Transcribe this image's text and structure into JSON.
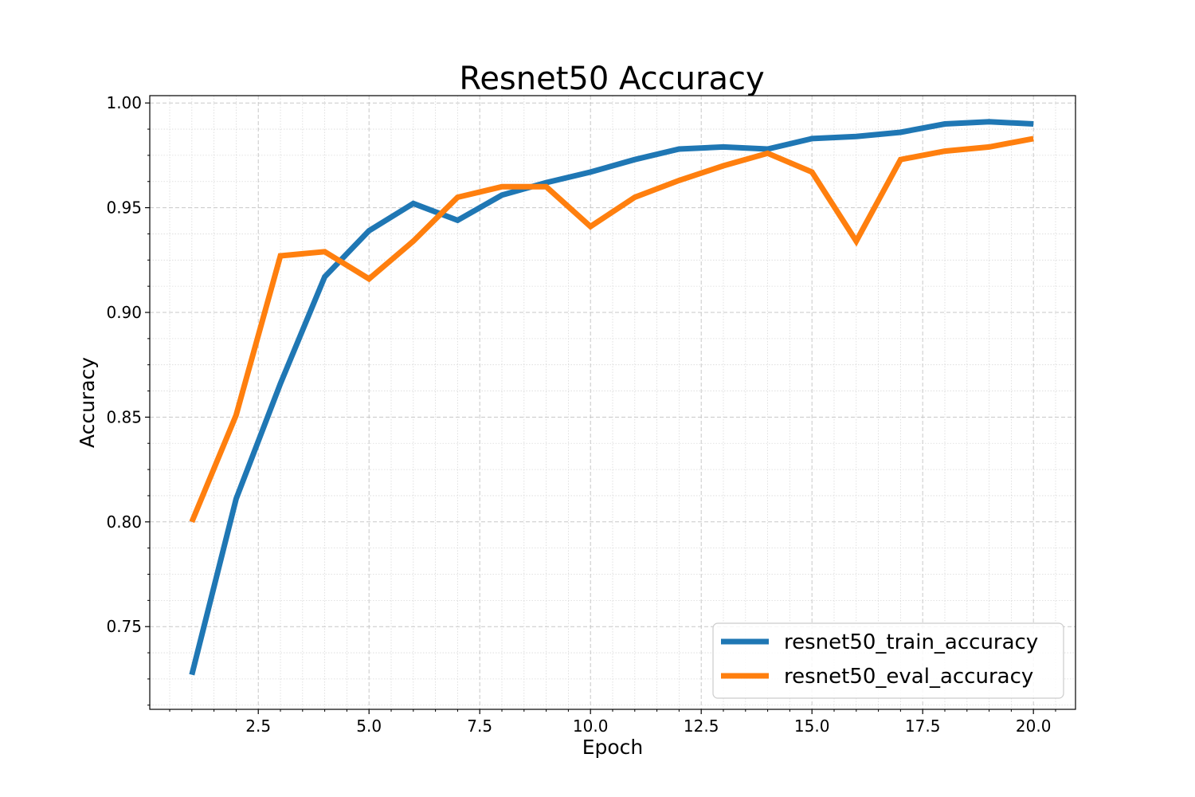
{
  "chart_data": {
    "type": "line",
    "title": "Resnet50 Accuracy",
    "xlabel": "Epoch",
    "ylabel": "Accuracy",
    "xlim": [
      0.05,
      20.95
    ],
    "ylim": [
      0.7105,
      1.0035
    ],
    "x_ticks": [
      2.5,
      5.0,
      7.5,
      10.0,
      12.5,
      15.0,
      17.5,
      20.0
    ],
    "x_tick_labels": [
      "2.5",
      "5.0",
      "7.5",
      "10.0",
      "12.5",
      "15.0",
      "17.5",
      "20.0"
    ],
    "x_minor_step": 0.5,
    "y_ticks": [
      0.75,
      0.8,
      0.85,
      0.9,
      0.95,
      1.0
    ],
    "y_tick_labels": [
      "0.75",
      "0.80",
      "0.85",
      "0.90",
      "0.95",
      "1.00"
    ],
    "y_minor_step": 0.0125,
    "grid": true,
    "legend_position": "lower-right",
    "x": [
      1,
      2,
      3,
      4,
      5,
      6,
      7,
      8,
      9,
      10,
      11,
      12,
      13,
      14,
      15,
      16,
      17,
      18,
      19,
      20
    ],
    "series": [
      {
        "name": "resnet50_train_accuracy",
        "color": "#1f77b4",
        "values": [
          0.727,
          0.811,
          0.866,
          0.917,
          0.939,
          0.952,
          0.944,
          0.956,
          0.962,
          0.967,
          0.973,
          0.978,
          0.979,
          0.978,
          0.983,
          0.984,
          0.986,
          0.99,
          0.991,
          0.99
        ]
      },
      {
        "name": "resnet50_eval_accuracy",
        "color": "#ff7f0e",
        "values": [
          0.8,
          0.851,
          0.927,
          0.929,
          0.916,
          0.934,
          0.955,
          0.96,
          0.96,
          0.941,
          0.955,
          0.963,
          0.97,
          0.976,
          0.967,
          0.934,
          0.973,
          0.977,
          0.979,
          0.983
        ]
      }
    ]
  }
}
